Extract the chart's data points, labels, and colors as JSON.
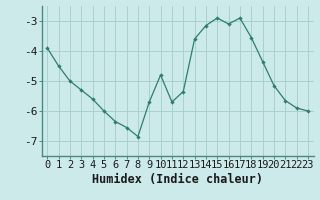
{
  "x": [
    0,
    1,
    2,
    3,
    4,
    5,
    6,
    7,
    8,
    9,
    10,
    11,
    12,
    13,
    14,
    15,
    16,
    17,
    18,
    19,
    20,
    21,
    22,
    23
  ],
  "y": [
    -3.9,
    -4.5,
    -5.0,
    -5.3,
    -5.6,
    -6.0,
    -6.35,
    -6.55,
    -6.85,
    -5.7,
    -4.8,
    -5.7,
    -5.35,
    -3.6,
    -3.15,
    -2.9,
    -3.1,
    -2.9,
    -3.55,
    -4.35,
    -5.15,
    -5.65,
    -5.9,
    -6.0
  ],
  "line_color": "#2e7d6e",
  "marker": "D",
  "marker_size": 2.2,
  "bg_color": "#cceaea",
  "grid_color": "#aad0d0",
  "title": "",
  "xlabel": "Humidex (Indice chaleur)",
  "ylabel": "",
  "xlim": [
    -0.5,
    23.5
  ],
  "ylim": [
    -7.5,
    -2.5
  ],
  "yticks": [
    -7,
    -6,
    -5,
    -4,
    -3
  ],
  "xticks": [
    0,
    1,
    2,
    3,
    4,
    5,
    6,
    7,
    8,
    9,
    10,
    11,
    12,
    13,
    14,
    15,
    16,
    17,
    18,
    19,
    20,
    21,
    22,
    23
  ],
  "xlabel_fontsize": 8.5,
  "tick_fontsize": 7.5,
  "spine_color": "#4a8a80"
}
